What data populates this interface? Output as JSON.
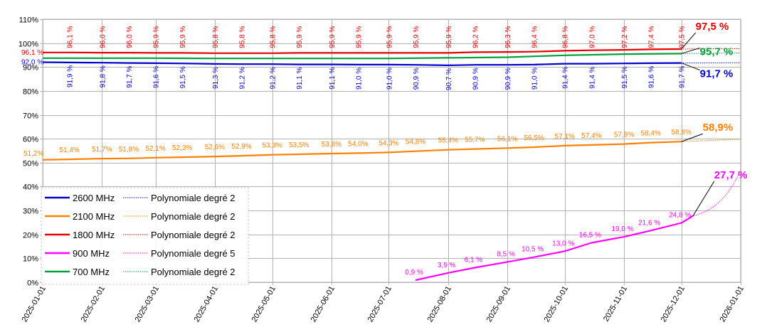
{
  "chart_data": {
    "type": "line",
    "title": "",
    "xlabel": "",
    "ylabel": "",
    "x_range": [
      "2025-01-01",
      "2026-01-01"
    ],
    "ylim": [
      0,
      110
    ],
    "grid": true,
    "legend_position": "bottom-left",
    "y_ticks": [
      "0%",
      "10%",
      "20%",
      "30%",
      "40%",
      "50%",
      "60%",
      "70%",
      "80%",
      "90%",
      "100%",
      "110%"
    ],
    "x_ticks": [
      "2025-01-01",
      "2025-02-01",
      "2025-03-01",
      "2025-04-01",
      "2025-05-01",
      "2025-06-01",
      "2025-07-01",
      "2025-08-01",
      "2025-09-01",
      "2025-10-01",
      "2025-11-01",
      "2025-12-01",
      "2026-01-01"
    ],
    "series": [
      {
        "name": "2600 MHz",
        "color": "#0000cc",
        "label_position": "below",
        "points": [
          {
            "x": "2025-01-01",
            "y": 92.0,
            "label": "92,0 %"
          },
          {
            "x": "2025-01-15",
            "y": 91.9,
            "label": "91,9 %"
          },
          {
            "x": "2025-02-01",
            "y": 91.8,
            "label": "91,8 %"
          },
          {
            "x": "2025-02-15",
            "y": 91.7,
            "label": "91,7 %"
          },
          {
            "x": "2025-03-01",
            "y": 91.6,
            "label": "91,6 %"
          },
          {
            "x": "2025-03-15",
            "y": 91.5,
            "label": "91,5 %"
          },
          {
            "x": "2025-04-01",
            "y": 91.3,
            "label": "91,3 %"
          },
          {
            "x": "2025-04-15",
            "y": 91.2,
            "label": "91,2 %"
          },
          {
            "x": "2025-05-01",
            "y": 91.2,
            "label": "91,2 %"
          },
          {
            "x": "2025-05-15",
            "y": 91.1,
            "label": "91,1 %"
          },
          {
            "x": "2025-06-01",
            "y": 91.1,
            "label": "91,1 %"
          },
          {
            "x": "2025-06-15",
            "y": 91.0,
            "label": "91,0 %"
          },
          {
            "x": "2025-07-01",
            "y": 91.0,
            "label": "91,0 %"
          },
          {
            "x": "2025-07-15",
            "y": 90.9,
            "label": "90,9 %"
          },
          {
            "x": "2025-08-01",
            "y": 90.7,
            "label": "90,7 %"
          },
          {
            "x": "2025-08-15",
            "y": 90.9,
            "label": "90,9 %"
          },
          {
            "x": "2025-09-01",
            "y": 90.9,
            "label": "90,9 %"
          },
          {
            "x": "2025-09-15",
            "y": 91.0,
            "label": "91,0 %"
          },
          {
            "x": "2025-10-01",
            "y": 91.4,
            "label": "91,4 %"
          },
          {
            "x": "2025-10-15",
            "y": 91.4,
            "label": "91,4 %"
          },
          {
            "x": "2025-11-01",
            "y": 91.5,
            "label": "91,5 %"
          },
          {
            "x": "2025-11-15",
            "y": 91.6,
            "label": "91,6 %"
          },
          {
            "x": "2025-12-01",
            "y": 91.7,
            "label": "91,7 %"
          }
        ],
        "end_label": "91,7 %"
      },
      {
        "name": "2100 MHz",
        "color": "#ff8000",
        "label_position": "above",
        "points": [
          {
            "x": "2025-01-01",
            "y": 51.2,
            "label": "51,2%"
          },
          {
            "x": "2025-01-15",
            "y": 51.4,
            "label": "51,4%"
          },
          {
            "x": "2025-02-01",
            "y": 51.7,
            "label": "51,7%"
          },
          {
            "x": "2025-02-15",
            "y": 51.8,
            "label": "51,8%"
          },
          {
            "x": "2025-03-01",
            "y": 52.1,
            "label": "52,1%"
          },
          {
            "x": "2025-03-15",
            "y": 52.3,
            "label": "52,3%"
          },
          {
            "x": "2025-04-01",
            "y": 52.6,
            "label": "52,6%"
          },
          {
            "x": "2025-04-15",
            "y": 52.9,
            "label": "52,9%"
          },
          {
            "x": "2025-05-01",
            "y": 53.3,
            "label": "53,3%"
          },
          {
            "x": "2025-05-15",
            "y": 53.5,
            "label": "53,5%"
          },
          {
            "x": "2025-06-01",
            "y": 53.8,
            "label": "53,8%"
          },
          {
            "x": "2025-06-15",
            "y": 54.0,
            "label": "54,0%"
          },
          {
            "x": "2025-07-01",
            "y": 54.3,
            "label": "54,3%"
          },
          {
            "x": "2025-07-15",
            "y": 54.8,
            "label": "54,8%"
          },
          {
            "x": "2025-08-01",
            "y": 55.4,
            "label": "55,4%"
          },
          {
            "x": "2025-08-15",
            "y": 55.7,
            "label": "55,7%"
          },
          {
            "x": "2025-09-01",
            "y": 56.1,
            "label": "56,1%"
          },
          {
            "x": "2025-09-15",
            "y": 56.5,
            "label": "56,5%"
          },
          {
            "x": "2025-10-01",
            "y": 57.1,
            "label": "57,1%"
          },
          {
            "x": "2025-10-15",
            "y": 57.4,
            "label": "57,4%"
          },
          {
            "x": "2025-11-01",
            "y": 57.8,
            "label": "57,8%"
          },
          {
            "x": "2025-11-15",
            "y": 58.4,
            "label": "58,4%"
          },
          {
            "x": "2025-12-01",
            "y": 58.8,
            "label": "58,8%"
          }
        ],
        "end_label": "58,9%"
      },
      {
        "name": "1800 MHz",
        "color": "#e60000",
        "label_position": "above",
        "points": [
          {
            "x": "2025-01-01",
            "y": 96.1,
            "label": "96,1 %"
          },
          {
            "x": "2025-01-15",
            "y": 96.1,
            "label": "96,1 %"
          },
          {
            "x": "2025-02-01",
            "y": 96.0,
            "label": "96,0 %"
          },
          {
            "x": "2025-02-15",
            "y": 96.0,
            "label": "96,0 %"
          },
          {
            "x": "2025-03-01",
            "y": 95.9,
            "label": "95,9 %"
          },
          {
            "x": "2025-03-15",
            "y": 95.9,
            "label": "95,9 %"
          },
          {
            "x": "2025-04-01",
            "y": 95.8,
            "label": "95,8 %"
          },
          {
            "x": "2025-04-15",
            "y": 95.8,
            "label": "95,8 %"
          },
          {
            "x": "2025-05-01",
            "y": 95.8,
            "label": "95,8 %"
          },
          {
            "x": "2025-05-15",
            "y": 95.9,
            "label": "95,9 %"
          },
          {
            "x": "2025-06-01",
            "y": 95.9,
            "label": "95,9 %"
          },
          {
            "x": "2025-06-15",
            "y": 95.9,
            "label": "95,9 %"
          },
          {
            "x": "2025-07-01",
            "y": 95.9,
            "label": "95,9 %"
          },
          {
            "x": "2025-07-15",
            "y": 95.9,
            "label": "95,9 %"
          },
          {
            "x": "2025-08-01",
            "y": 95.9,
            "label": "95,9 %"
          },
          {
            "x": "2025-08-15",
            "y": 96.2,
            "label": "96,2 %"
          },
          {
            "x": "2025-09-01",
            "y": 96.3,
            "label": "96,3 %"
          },
          {
            "x": "2025-09-15",
            "y": 96.4,
            "label": "96,4 %"
          },
          {
            "x": "2025-10-01",
            "y": 96.8,
            "label": "96,8 %"
          },
          {
            "x": "2025-10-15",
            "y": 97.0,
            "label": "97,0 %"
          },
          {
            "x": "2025-11-01",
            "y": 97.2,
            "label": "97,2 %"
          },
          {
            "x": "2025-11-15",
            "y": 97.4,
            "label": "97,4 %"
          },
          {
            "x": "2025-12-01",
            "y": 97.5,
            "label": "97,5 %"
          }
        ],
        "end_label": "97,5 %"
      },
      {
        "name": "900 MHz",
        "color": "#ff00ff",
        "label_position": "above",
        "points": [
          {
            "x": "2025-07-15",
            "y": 0.9,
            "label": "0,9 %"
          },
          {
            "x": "2025-08-01",
            "y": 3.9,
            "label": "3,9 %"
          },
          {
            "x": "2025-08-15",
            "y": 6.1,
            "label": "6,1 %"
          },
          {
            "x": "2025-09-01",
            "y": 8.5,
            "label": "8,5 %"
          },
          {
            "x": "2025-09-15",
            "y": 10.5,
            "label": "10,5 %"
          },
          {
            "x": "2025-10-01",
            "y": 13.0,
            "label": "13,0 %"
          },
          {
            "x": "2025-10-15",
            "y": 16.5,
            "label": "16,5 %"
          },
          {
            "x": "2025-11-01",
            "y": 19.0,
            "label": "19,0 %"
          },
          {
            "x": "2025-11-15",
            "y": 21.6,
            "label": "21,6 %"
          },
          {
            "x": "2025-12-01",
            "y": 24.8,
            "label": "24,8 %"
          },
          {
            "x": "2025-12-07",
            "y": 27.7,
            "label": ""
          }
        ],
        "end_label": "27,7 %"
      },
      {
        "name": "700 MHz",
        "color": "#00a03c",
        "label_position": "none",
        "points": [
          {
            "x": "2025-01-01",
            "y": 93.7,
            "label": ""
          },
          {
            "x": "2025-03-01",
            "y": 93.7,
            "label": ""
          },
          {
            "x": "2025-04-01",
            "y": 93.6,
            "label": ""
          },
          {
            "x": "2025-07-01",
            "y": 93.6,
            "label": ""
          },
          {
            "x": "2025-09-01",
            "y": 94.1,
            "label": ""
          },
          {
            "x": "2025-10-01",
            "y": 94.9,
            "label": ""
          },
          {
            "x": "2025-11-01",
            "y": 95.4,
            "label": ""
          },
          {
            "x": "2025-12-01",
            "y": 95.6,
            "label": ""
          }
        ],
        "end_label": "95,7 %"
      }
    ],
    "trendlines": [
      {
        "series": "2600 MHz",
        "name": "Polynomiale degré 2",
        "color": "#0000cc",
        "extend_to": "2026-01-01",
        "end_value": 91.8
      },
      {
        "series": "2100 MHz",
        "name": "Polynomiale degré 2",
        "color": "#ff8000",
        "extend_to": "2026-01-01",
        "end_value": 59.8
      },
      {
        "series": "1800 MHz",
        "name": "Polynomiale degré 2",
        "color": "#e60000",
        "extend_to": "2026-01-01",
        "end_value": 97.7
      },
      {
        "series": "900 MHz",
        "name": "Polynomiale degré 5",
        "color": "#ff00ff",
        "extend_to": "2026-01-01",
        "end_value": 47.0
      },
      {
        "series": "700 MHz",
        "name": "Polynomiale degré 2",
        "color": "#00a03c",
        "extend_to": "2026-01-01",
        "end_value": 95.9
      }
    ]
  }
}
